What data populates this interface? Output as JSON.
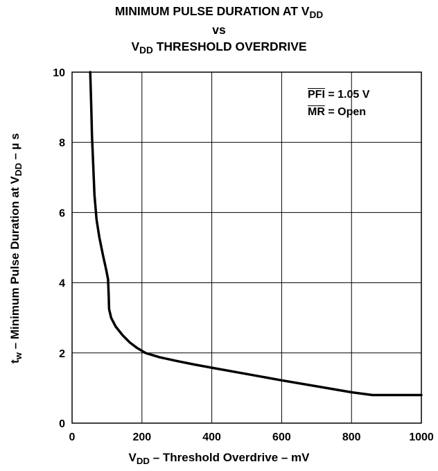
{
  "title": {
    "line1_main": "MINIMUM PULSE DURATION AT V",
    "line1_sub": "DD",
    "line2": "vs",
    "line3_main": "V",
    "line3_sub": "DD",
    "line3_rest": " THRESHOLD OVERDRIVE"
  },
  "axes": {
    "x_label_main": "V",
    "x_label_sub": "DD",
    "x_label_rest": " – Threshold Overdrive – mV",
    "y_label_main": "t",
    "y_label_sub": "w",
    "y_label_mid": " – Minimum Pulse Duration at V",
    "y_label_sub2": "DD",
    "y_label_rest": " – µ s"
  },
  "annotations": {
    "pfi_name": "PFI",
    "pfi_value": " = 1.05 V",
    "mr_name": "MR",
    "mr_value": " = Open"
  },
  "chart_data": {
    "type": "line",
    "title": "MINIMUM PULSE DURATION AT VDD vs VDD THRESHOLD OVERDRIVE",
    "xlabel": "VDD – Threshold Overdrive – mV",
    "ylabel": "tw – Minimum Pulse Duration at VDD – µ s",
    "xlim": [
      0,
      1000
    ],
    "ylim": [
      0,
      10
    ],
    "xticks": [
      "0",
      "200",
      "400",
      "600",
      "800",
      "1000"
    ],
    "yticks": [
      "0",
      "2",
      "4",
      "6",
      "8",
      "10"
    ],
    "grid": true,
    "series": [
      {
        "x": [
          52,
          55,
          57,
          60,
          64,
          70,
          78,
          88,
          97,
          103,
          105,
          106,
          112,
          125,
          145,
          165,
          185,
          210,
          250,
          300,
          350,
          400,
          500,
          600,
          700,
          800,
          860,
          900,
          1000
        ],
        "y": [
          10,
          9,
          8.2,
          7.5,
          6.5,
          5.8,
          5.3,
          4.8,
          4.4,
          4.1,
          3.6,
          3.25,
          3.0,
          2.75,
          2.5,
          2.3,
          2.15,
          2.0,
          1.88,
          1.77,
          1.67,
          1.58,
          1.4,
          1.22,
          1.05,
          0.88,
          0.8,
          0.8,
          0.8
        ]
      }
    ]
  }
}
